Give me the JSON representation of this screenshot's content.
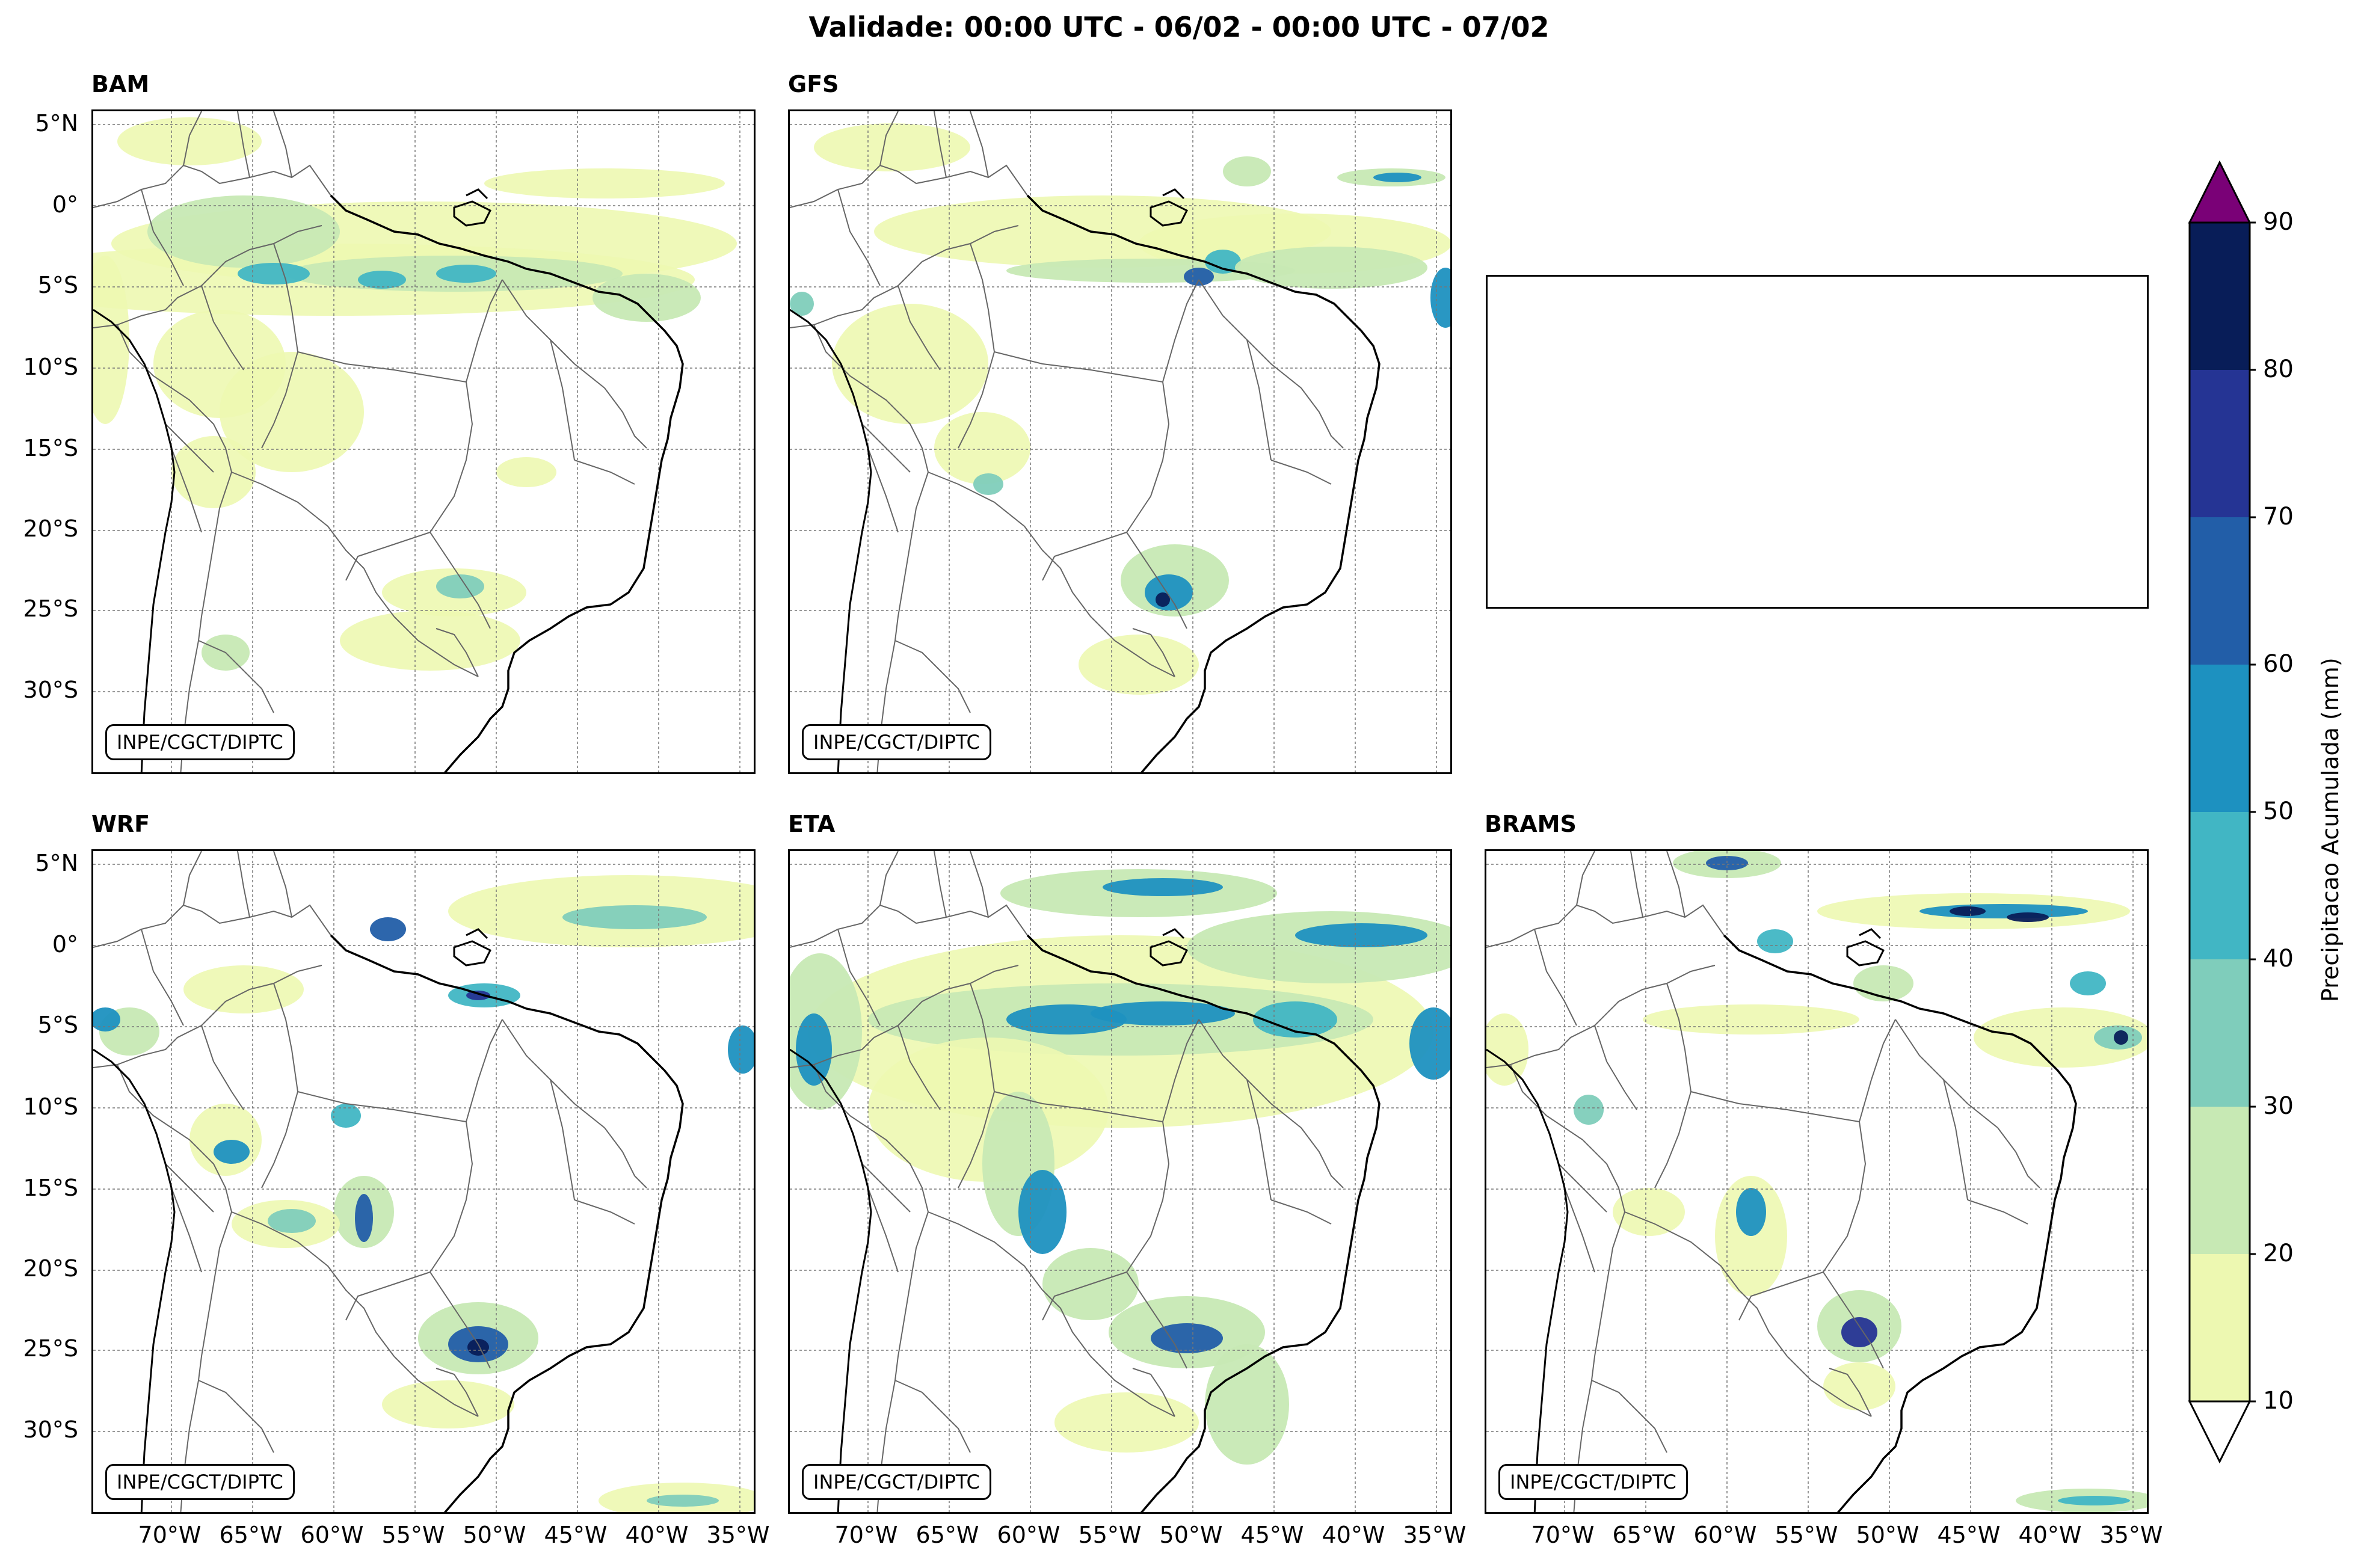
{
  "title": "Validade: 00:00 UTC - 06/02 - 00:00 UTC - 07/02",
  "watermark": "INPE/CGCT/DIPTC",
  "panels": [
    {
      "id": "bam",
      "name": "BAM"
    },
    {
      "id": "gfs",
      "name": "GFS"
    },
    {
      "id": "wrf",
      "name": "WRF"
    },
    {
      "id": "eta",
      "name": "ETA"
    },
    {
      "id": "brams",
      "name": "BRAMS"
    }
  ],
  "lat_ticks": [
    "5°N",
    "0°",
    "5°S",
    "10°S",
    "15°S",
    "20°S",
    "25°S",
    "30°S"
  ],
  "lon_ticks": [
    "70°W",
    "65°W",
    "60°W",
    "55°W",
    "50°W",
    "45°W",
    "40°W",
    "35°W"
  ],
  "colorbar": {
    "label": "Precipitacao Acumulada (mm)",
    "ticks": [
      "10",
      "20",
      "30",
      "40",
      "50",
      "60",
      "70",
      "80",
      "90"
    ],
    "colors": [
      "#edf8b1",
      "#c7e9b4",
      "#7fcdbb",
      "#41b6c4",
      "#1d91c0",
      "#225ea8",
      "#253494",
      "#081d58"
    ],
    "over_color": "#7a0177",
    "under_color": "#ffffff"
  }
}
